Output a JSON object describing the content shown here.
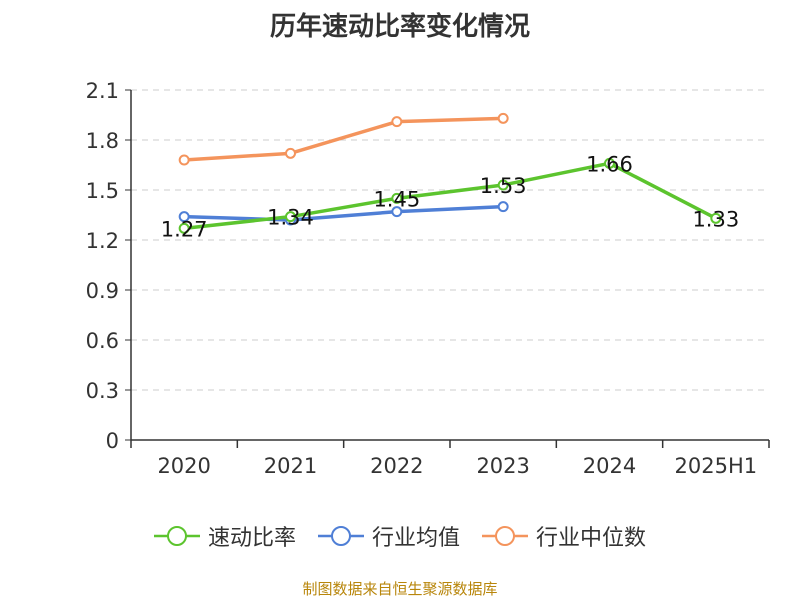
{
  "chart_data": {
    "type": "line",
    "title": "历年速动比率变化情况",
    "categories": [
      "2020",
      "2021",
      "2022",
      "2023",
      "2024",
      "2025H1"
    ],
    "ylim": [
      0,
      2.1
    ],
    "yticks": [
      "0",
      "0.3",
      "0.6",
      "0.9",
      "1.2",
      "1.5",
      "1.8",
      "2.1"
    ],
    "grid": true,
    "legend_position": "bottom",
    "series": [
      {
        "name": "速动比率",
        "color": "#5cc42e",
        "values": [
          1.27,
          1.34,
          1.45,
          1.53,
          1.66,
          1.33
        ],
        "labels": [
          "1.27",
          "1.34",
          "1.45",
          "1.53",
          "1.66",
          "1.33"
        ]
      },
      {
        "name": "行业均值",
        "color": "#4f7fd6",
        "values": [
          1.34,
          1.32,
          1.37,
          1.4,
          null,
          null
        ]
      },
      {
        "name": "行业中位数",
        "color": "#f4945c",
        "values": [
          1.68,
          1.72,
          1.91,
          1.93,
          null,
          null
        ]
      }
    ]
  },
  "source": "制图数据来自恒生聚源数据库"
}
